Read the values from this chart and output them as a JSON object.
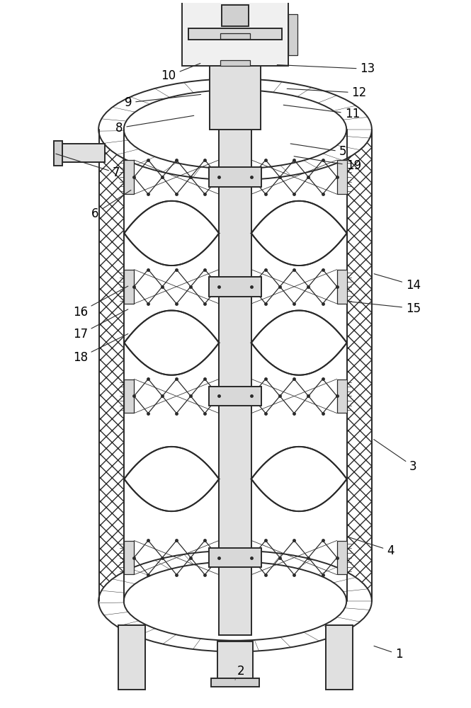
{
  "bg_color": "#ffffff",
  "line_color": "#2a2a2a",
  "label_color": "#000000",
  "label_fontsize": 12,
  "leader_color": "#2a2a2a",
  "fig_width": 6.65,
  "fig_height": 10.0
}
